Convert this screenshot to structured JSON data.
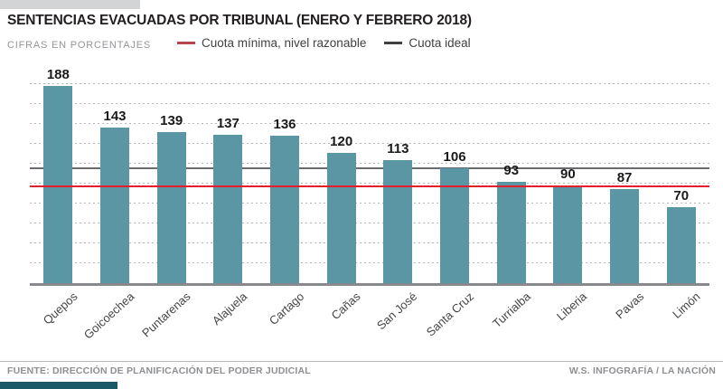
{
  "header": {
    "title": "SENTENCIAS EVACUADAS POR TRIBUNAL (ENERO Y FEBRERO 2018)",
    "subtitle": "CIFRAS EN PORCENTAJES"
  },
  "legend": {
    "minima": {
      "label": "Cuota mínima, nivel razonable",
      "swatch_color": "#b5464d"
    },
    "ideal": {
      "label": "Cuota ideal",
      "swatch_color": "#3f4041"
    }
  },
  "chart_data": {
    "type": "bar",
    "title": "SENTENCIAS EVACUADAS POR TRIBUNAL (ENERO Y FEBRERO 2018)",
    "units": "porcentajes",
    "categories": [
      "Quepos",
      "Goicoechea",
      "Puntarenas",
      "Alajuela",
      "Cartago",
      "Cañas",
      "San José",
      "Santa Cruz",
      "Turrialba",
      "Liberia",
      "Pavas",
      "Limón"
    ],
    "values": [
      188,
      143,
      139,
      137,
      136,
      120,
      113,
      106,
      93,
      90,
      87,
      70
    ],
    "bar_color": "#5b96a5",
    "reference_lines": [
      {
        "name": "cuota_minima_nivel_razonable",
        "value": 88,
        "color": "#e41e2d"
      },
      {
        "name": "cuota_ideal",
        "value": 105,
        "color": "#6a6b6e"
      }
    ],
    "ylim": [
      0,
      190
    ],
    "grid": true,
    "legend_position": "top",
    "xlabel": "",
    "ylabel": ""
  },
  "colors": {
    "accent_top_bar": "#d2d4d5",
    "accent_bottom_bar": "#1b5968",
    "axis_line": "#87898c"
  },
  "footer": {
    "source": "FUENTE: DIRECCIÓN DE PLANIFICACIÓN DEL PODER JUDICIAL",
    "credit": "W.S. INFOGRAFÍA / LA NACIÓN"
  }
}
